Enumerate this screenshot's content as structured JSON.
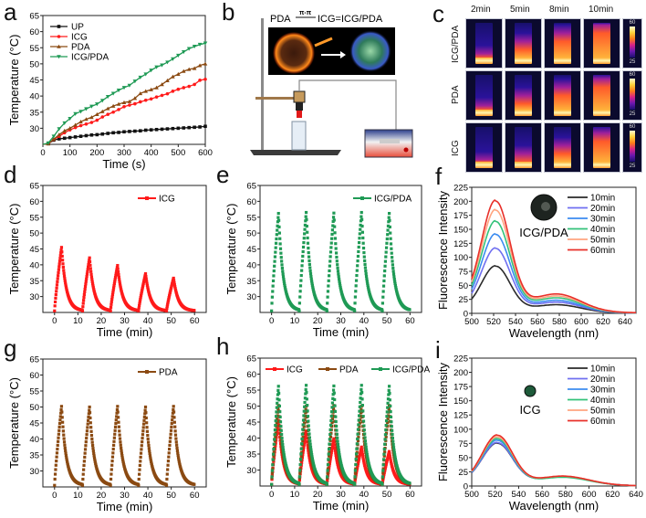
{
  "panels": {
    "a": "a",
    "b": "b",
    "c": "c",
    "d": "d",
    "e": "e",
    "f": "f",
    "g": "g",
    "h": "h",
    "i": "i"
  },
  "schematic": {
    "equation_left": "PDA",
    "equation_arrow_label": "π-π",
    "equation_right": "ICG=ICG/PDA"
  },
  "thermal": {
    "columns": [
      "2min",
      "5min",
      "8min",
      "10min"
    ],
    "rows": [
      "ICG/PDA",
      "PDA",
      "ICG"
    ],
    "colorbar_max": "60",
    "colorbar_min": "25",
    "fill_levels": [
      [
        0.25,
        0.55,
        0.75,
        0.95
      ],
      [
        0.25,
        0.5,
        0.7,
        0.9
      ],
      [
        0.2,
        0.35,
        0.55,
        0.85
      ]
    ]
  },
  "colors": {
    "UP": "#111111",
    "ICG": "#ff1a1a",
    "PDA": "#8b4a12",
    "ICG/PDA": "#1f9a55",
    "t10": "#2a2a2a",
    "t20": "#6f6ff0",
    "t30": "#3c8cf0",
    "t40": "#33c27a",
    "t50": "#ffa580",
    "t60": "#e8302a"
  },
  "chart_data": [
    {
      "id": "a",
      "type": "line",
      "xlabel": "Time (s)",
      "ylabel": "Temperature (°C)",
      "xlim": [
        0,
        600
      ],
      "ylim": [
        25,
        65
      ],
      "xticks": [
        0,
        100,
        200,
        300,
        400,
        500,
        600
      ],
      "yticks": [
        30,
        35,
        40,
        45,
        50,
        55,
        60,
        65
      ],
      "legend": "top-left",
      "x": [
        20,
        40,
        60,
        80,
        100,
        120,
        140,
        160,
        180,
        200,
        220,
        240,
        260,
        280,
        300,
        320,
        340,
        360,
        380,
        400,
        420,
        440,
        460,
        480,
        500,
        520,
        540,
        560,
        580,
        600
      ],
      "series": [
        {
          "name": "UP",
          "marker": "square",
          "values": [
            25.2,
            26.3,
            26.7,
            26.9,
            27.1,
            27.3,
            27.5,
            27.7,
            27.9,
            28.0,
            28.2,
            28.4,
            28.6,
            28.7,
            28.9,
            29.0,
            29.1,
            29.2,
            29.4,
            29.5,
            29.6,
            29.7,
            29.8,
            29.9,
            30.0,
            30.1,
            30.2,
            30.3,
            30.4,
            30.6
          ]
        },
        {
          "name": "ICG",
          "marker": "circle",
          "values": [
            25.2,
            26.5,
            27.5,
            28.6,
            29.5,
            30.2,
            30.8,
            31.3,
            31.8,
            32.5,
            33.5,
            34.3,
            35.0,
            35.8,
            36.7,
            37.2,
            37.6,
            38.2,
            38.7,
            39.1,
            39.7,
            40.2,
            40.7,
            41.5,
            42.1,
            42.6,
            43.0,
            43.6,
            44.9,
            45.2
          ]
        },
        {
          "name": "PDA",
          "marker": "triangle-up",
          "values": [
            25.2,
            26.6,
            28.0,
            29.2,
            30.0,
            31.0,
            32.0,
            32.8,
            33.4,
            34.3,
            35.2,
            36.1,
            36.9,
            37.5,
            38.0,
            38.3,
            39.3,
            40.8,
            41.5,
            42.0,
            42.6,
            43.6,
            44.8,
            46.0,
            46.8,
            47.7,
            48.3,
            48.6,
            49.5,
            50.0
          ]
        },
        {
          "name": "ICG/PDA",
          "marker": "triangle-down",
          "values": [
            25.4,
            27.5,
            29.8,
            31.6,
            33.0,
            34.5,
            35.2,
            36.0,
            36.8,
            37.5,
            38.6,
            39.8,
            40.8,
            41.8,
            42.6,
            43.3,
            44.6,
            45.8,
            46.8,
            48.0,
            49.0,
            49.6,
            50.5,
            51.5,
            52.6,
            53.7,
            54.7,
            55.4,
            56.0,
            56.4
          ]
        }
      ]
    },
    {
      "id": "d",
      "type": "line",
      "xlabel": "Time (min)",
      "ylabel": "Temperature (°C)",
      "xlim": [
        -5,
        65
      ],
      "ylim": [
        25,
        65
      ],
      "xticks": [
        0,
        10,
        20,
        30,
        40,
        50,
        60
      ],
      "yticks": [
        30,
        35,
        40,
        45,
        50,
        55,
        60,
        65
      ],
      "legend": "top-right",
      "cycle_starts": [
        0,
        12,
        24,
        36,
        48
      ],
      "series": [
        {
          "name": "ICG",
          "peaks": [
            45.5,
            42.2,
            39.8,
            37.2,
            35.8
          ],
          "baseline": 25.5
        }
      ]
    },
    {
      "id": "e",
      "type": "line",
      "xlabel": "Time (min)",
      "ylabel": "Temperature (°C)",
      "xlim": [
        -5,
        65
      ],
      "ylim": [
        25,
        65
      ],
      "xticks": [
        0,
        10,
        20,
        30,
        40,
        50,
        60
      ],
      "yticks": [
        30,
        35,
        40,
        45,
        50,
        55,
        60,
        65
      ],
      "legend": "top-right",
      "cycle_starts": [
        0,
        12,
        24,
        36,
        48
      ],
      "series": [
        {
          "name": "ICG/PDA",
          "peaks": [
            56.2,
            56.5,
            56.3,
            56.5,
            56.2
          ],
          "baseline": 25.5
        }
      ]
    },
    {
      "id": "f",
      "type": "line",
      "xlabel": "Wavelength (nm)",
      "ylabel": "Fluorescence Intensity",
      "xlim": [
        500,
        650
      ],
      "ylim": [
        0,
        225
      ],
      "xticks": [
        500,
        520,
        540,
        560,
        580,
        600,
        620,
        640
      ],
      "yticks": [
        0,
        25,
        50,
        75,
        100,
        125,
        150,
        175,
        200,
        225
      ],
      "legend": "top-right",
      "annotation": "ICG/PDA",
      "series": [
        {
          "name": "10min",
          "peak": 80,
          "shoulder": 14,
          "start": 12
        },
        {
          "name": "20min",
          "peak": 110,
          "shoulder": 18,
          "start": 17
        },
        {
          "name": "30min",
          "peak": 134,
          "shoulder": 21,
          "start": 20
        },
        {
          "name": "40min",
          "peak": 156,
          "shoulder": 25,
          "start": 23
        },
        {
          "name": "50min",
          "peak": 175,
          "shoulder": 28,
          "start": 26
        },
        {
          "name": "60min",
          "peak": 190,
          "shoulder": 31,
          "start": 30
        }
      ]
    },
    {
      "id": "g",
      "type": "line",
      "xlabel": "Time (min)",
      "ylabel": "Temperature (°C)",
      "xlim": [
        -5,
        65
      ],
      "ylim": [
        25,
        65
      ],
      "xticks": [
        0,
        10,
        20,
        30,
        40,
        50,
        60
      ],
      "yticks": [
        30,
        35,
        40,
        45,
        50,
        55,
        60,
        65
      ],
      "legend": "top-right",
      "cycle_starts": [
        0,
        12,
        24,
        36,
        48
      ],
      "series": [
        {
          "name": "PDA",
          "peaks": [
            50.2,
            50.0,
            50.2,
            50.0,
            50.2
          ],
          "baseline": 25.5
        }
      ]
    },
    {
      "id": "h",
      "type": "line",
      "xlabel": "Time (min)",
      "ylabel": "Temperature (°C)",
      "xlim": [
        -5,
        65
      ],
      "ylim": [
        25,
        65
      ],
      "xticks": [
        0,
        10,
        20,
        30,
        40,
        50,
        60
      ],
      "yticks": [
        30,
        35,
        40,
        45,
        50,
        55,
        60,
        65
      ],
      "legend": "top",
      "cycle_starts": [
        0,
        12,
        24,
        36,
        48
      ],
      "series": [
        {
          "name": "ICG",
          "peaks": [
            45.5,
            42.2,
            39.8,
            37.2,
            35.8
          ],
          "baseline": 25.5
        },
        {
          "name": "PDA",
          "peaks": [
            50.2,
            50.0,
            50.2,
            50.0,
            50.2
          ],
          "baseline": 25.5
        },
        {
          "name": "ICG/PDA",
          "peaks": [
            56.2,
            56.5,
            56.3,
            56.5,
            56.2
          ],
          "baseline": 25.5
        }
      ]
    },
    {
      "id": "i",
      "type": "line",
      "xlabel": "Wavelength (nm)",
      "ylabel": "Fluorescence Intensity",
      "xlim": [
        500,
        640
      ],
      "ylim": [
        0,
        225
      ],
      "xticks": [
        500,
        520,
        540,
        560,
        580,
        600,
        620,
        640
      ],
      "yticks": [
        0,
        25,
        50,
        75,
        100,
        125,
        150,
        175,
        200,
        225
      ],
      "legend": "top-right",
      "annotation": "ICG",
      "series": [
        {
          "name": "10min",
          "peak": 71,
          "shoulder": 15,
          "start": 12
        },
        {
          "name": "20min",
          "peak": 72,
          "shoulder": 15,
          "start": 12
        },
        {
          "name": "30min",
          "peak": 76,
          "shoulder": 15,
          "start": 12
        },
        {
          "name": "40min",
          "peak": 79,
          "shoulder": 14,
          "start": 12
        },
        {
          "name": "50min",
          "peak": 82,
          "shoulder": 16,
          "start": 12
        },
        {
          "name": "60min",
          "peak": 85,
          "shoulder": 16,
          "start": 12
        }
      ]
    }
  ]
}
